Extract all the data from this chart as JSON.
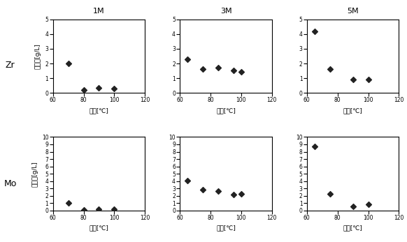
{
  "col_titles": [
    "1M",
    "3M",
    "5M"
  ],
  "row_labels": [
    "Zr",
    "Mo"
  ],
  "zr_data": {
    "1M": {
      "x": [
        70,
        80,
        90,
        100
      ],
      "y": [
        2.0,
        0.2,
        0.35,
        0.3
      ]
    },
    "3M": {
      "x": [
        65,
        75,
        85,
        95,
        100
      ],
      "y": [
        2.3,
        1.6,
        1.7,
        1.55,
        1.45
      ]
    },
    "5M": {
      "x": [
        65,
        75,
        90,
        100
      ],
      "y": [
        4.2,
        1.6,
        0.9,
        0.9
      ]
    }
  },
  "mo_data": {
    "1M": {
      "x": [
        70,
        80,
        90,
        100
      ],
      "y": [
        1.0,
        0.1,
        0.2,
        0.15
      ]
    },
    "3M": {
      "x": [
        65,
        75,
        85,
        95,
        100
      ],
      "y": [
        4.1,
        2.8,
        2.6,
        2.2,
        2.3
      ]
    },
    "5M": {
      "x": [
        65,
        75,
        90,
        100
      ],
      "y": [
        8.7,
        2.3,
        0.6,
        0.8
      ]
    }
  },
  "zr_ylim": [
    0,
    5
  ],
  "mo_ylim": [
    0,
    10
  ],
  "xlim": [
    60,
    120
  ],
  "xticks": [
    60,
    80,
    100,
    120
  ],
  "zr_yticks": [
    0,
    1,
    2,
    3,
    4,
    5
  ],
  "mo_yticks": [
    0,
    1,
    2,
    3,
    4,
    5,
    6,
    7,
    8,
    9,
    10
  ],
  "marker": "D",
  "marker_color": "#222222",
  "marker_size": 4,
  "bg_color": "white",
  "tick_fontsize": 5.5,
  "label_fontsize": 6.5,
  "title_fontsize": 8,
  "row_label_fontsize": 9
}
